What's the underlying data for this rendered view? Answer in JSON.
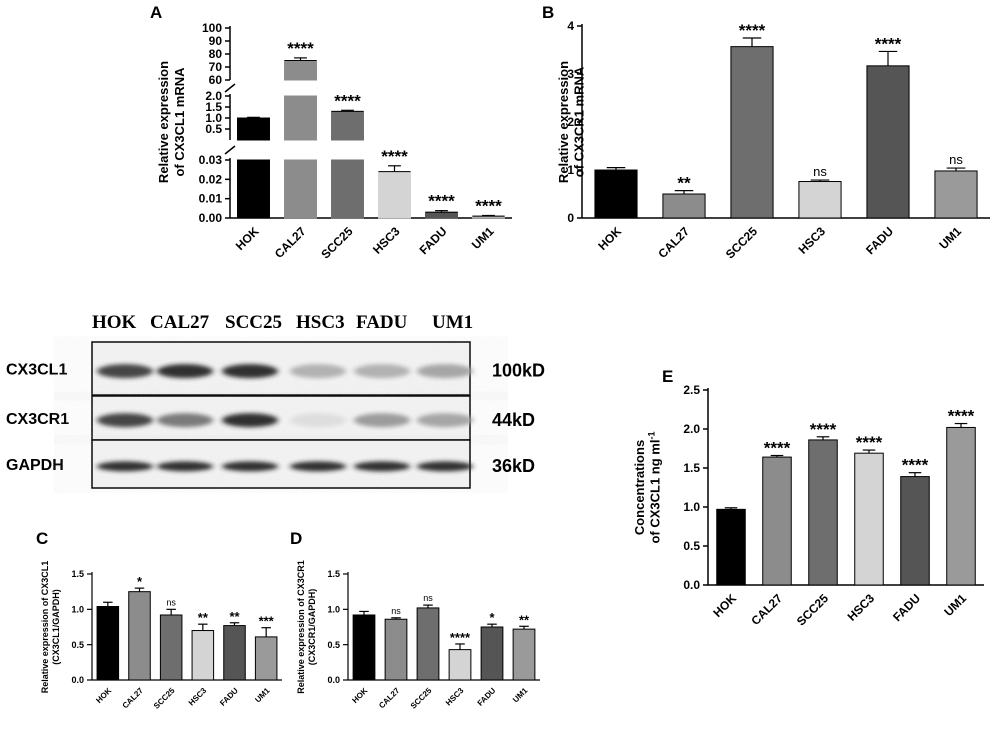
{
  "colors": {
    "hok": "#000000",
    "cal27": "#8c8c8c",
    "scc25": "#6e6e6e",
    "hsc3": "#d4d4d4",
    "fadu": "#555555",
    "um1": "#9a9a9a",
    "um1_A": "#b0b0b0"
  },
  "chart_data": [
    {
      "id": "A",
      "type": "bar",
      "panel_letter": "A",
      "categories": [
        "HOK",
        "CAL27",
        "SCC25",
        "HSC3",
        "FADU",
        "UM1"
      ],
      "values": [
        1.0,
        75,
        1.3,
        0.024,
        0.003,
        0.001
      ],
      "errors": [
        0.03,
        2,
        0.05,
        0.003,
        0.0008,
        0.0003
      ],
      "significance": [
        "",
        "****",
        "****",
        "****",
        "****",
        "****"
      ],
      "ylabel_line1": "Relative expression",
      "ylabel_line2": "of CX3CL1 mRNA",
      "axis_segments": [
        {
          "range": [
            60,
            100
          ],
          "ticks": [
            "60",
            "70",
            "80",
            "90",
            "100"
          ]
        },
        {
          "range": [
            0,
            2.0
          ],
          "ticks": [
            "0.5",
            "1.0",
            "1.5",
            "2.0"
          ]
        },
        {
          "range": [
            0,
            0.03
          ],
          "ticks": [
            "0.00",
            "0.01",
            "0.02",
            "0.03"
          ]
        }
      ],
      "broken_axis": true
    },
    {
      "id": "B",
      "type": "bar",
      "panel_letter": "B",
      "categories": [
        "HOK",
        "CAL27",
        "SCC25",
        "HSC3",
        "FADU",
        "UM1"
      ],
      "values": [
        1.0,
        0.5,
        3.57,
        0.76,
        3.17,
        0.98
      ],
      "errors": [
        0.05,
        0.07,
        0.18,
        0.03,
        0.3,
        0.06
      ],
      "significance": [
        "",
        "**",
        "****",
        "ns",
        "****",
        "ns"
      ],
      "ylabel_line1": "Relative expression",
      "ylabel_line2": "of CX3CR1 mRNA",
      "ylim": [
        0,
        4
      ],
      "yticks": [
        "0",
        "1",
        "2",
        "3",
        "4"
      ]
    },
    {
      "id": "C",
      "type": "bar",
      "panel_letter": "C",
      "categories": [
        "HOK",
        "CAL27",
        "SCC25",
        "HSC3",
        "FADU",
        "UM1"
      ],
      "values": [
        1.04,
        1.25,
        0.92,
        0.7,
        0.77,
        0.61
      ],
      "errors": [
        0.06,
        0.05,
        0.08,
        0.09,
        0.04,
        0.13
      ],
      "significance": [
        "",
        "*",
        "ns",
        "**",
        "**",
        "***"
      ],
      "ylabel_line1": "Relative expression of CX3CL1",
      "ylabel_line2": "(CX3CL1/GAPDH)",
      "ylim": [
        0,
        1.5
      ],
      "yticks": [
        "0.0",
        "0.5",
        "1.0",
        "1.5"
      ]
    },
    {
      "id": "D",
      "type": "bar",
      "panel_letter": "D",
      "categories": [
        "HOK",
        "CAL27",
        "SCC25",
        "HSC3",
        "FADU",
        "UM1"
      ],
      "values": [
        0.92,
        0.86,
        1.02,
        0.43,
        0.75,
        0.72
      ],
      "errors": [
        0.05,
        0.02,
        0.04,
        0.08,
        0.04,
        0.04
      ],
      "significance": [
        "",
        "ns",
        "ns",
        "****",
        "*",
        "**"
      ],
      "ylabel_line1": "Relative expression of CX3CR1",
      "ylabel_line2": "(CX3CR1/GAPDH)",
      "ylim": [
        0,
        1.5
      ],
      "yticks": [
        "0.0",
        "0.5",
        "1.0",
        "1.5"
      ]
    },
    {
      "id": "E",
      "type": "bar",
      "panel_letter": "E",
      "categories": [
        "HOK",
        "CAL27",
        "SCC25",
        "HSC3",
        "FADU",
        "UM1"
      ],
      "values": [
        0.97,
        1.64,
        1.86,
        1.69,
        1.39,
        2.02
      ],
      "errors": [
        0.02,
        0.02,
        0.04,
        0.04,
        0.05,
        0.05
      ],
      "significance": [
        "",
        "****",
        "****",
        "****",
        "****",
        "****"
      ],
      "ylabel_line1": "Concentrations",
      "ylabel_line2": "of CX3CL1 ng ml",
      "ylabel_sup": "-1",
      "ylim": [
        0,
        2.5
      ],
      "yticks": [
        "0.0",
        "0.5",
        "1.0",
        "1.5",
        "2.0",
        "2.5"
      ]
    }
  ],
  "blot": {
    "lanes": [
      "HOK",
      "CAL27",
      "SCC25",
      "HSC3",
      "FADU",
      "UM1"
    ],
    "rows": [
      {
        "protein": "CX3CL1",
        "size": "100kD",
        "intensity": [
          0.85,
          0.95,
          0.95,
          0.35,
          0.35,
          0.4
        ]
      },
      {
        "protein": "CX3CR1",
        "size": "44kD",
        "intensity": [
          0.85,
          0.6,
          0.95,
          0.15,
          0.45,
          0.4
        ]
      },
      {
        "protein": "GAPDH",
        "size": "36kD",
        "intensity": [
          0.95,
          0.95,
          0.95,
          0.95,
          0.95,
          0.95
        ]
      }
    ]
  }
}
